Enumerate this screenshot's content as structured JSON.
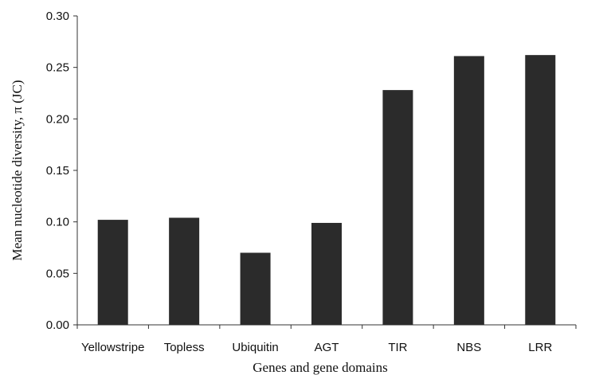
{
  "chart_data": {
    "type": "bar",
    "categories": [
      "Yellowstripe",
      "Topless",
      "Ubiquitin",
      "AGT",
      "TIR",
      "NBS",
      "LRR"
    ],
    "values": [
      0.102,
      0.104,
      0.07,
      0.099,
      0.228,
      0.261,
      0.262
    ],
    "xlabel": "Genes and gene domains",
    "ylabel": "Mean nucleotide diversity, π (JC)",
    "ylim": [
      0,
      0.3
    ],
    "yticks": [
      "0.00",
      "0.05",
      "0.10",
      "0.15",
      "0.20",
      "0.25",
      "0.30"
    ],
    "grid": false,
    "bar_color": "#2b2b2b",
    "axis_color": "#333333"
  }
}
